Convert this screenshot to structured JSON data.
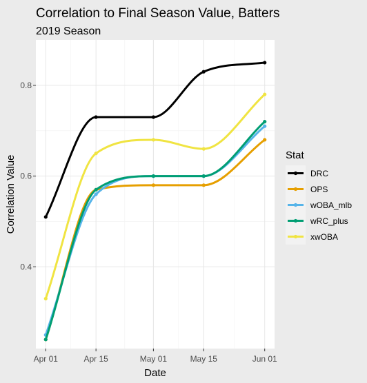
{
  "chart_data": {
    "type": "line",
    "title": "Correlation to Final Season Value, Batters",
    "subtitle": "2019 Season",
    "xlabel": "Date",
    "ylabel": "Correlation Value",
    "legend_title": "Stat",
    "legend_position": "right",
    "x": [
      "2019-04-01",
      "2019-04-15",
      "2019-05-01",
      "2019-05-15",
      "2019-06-01"
    ],
    "xticks": [
      "Apr 01",
      "Apr 15",
      "May 01",
      "May 15",
      "Jun 01"
    ],
    "yticks": [
      0.4,
      0.6,
      0.8
    ],
    "ylim": [
      0.22,
      0.9
    ],
    "grid": true,
    "series": [
      {
        "name": "DRC",
        "color": "#000000",
        "values": [
          0.51,
          0.73,
          0.73,
          0.83,
          0.85
        ]
      },
      {
        "name": "OPS",
        "color": "#e69f00",
        "values": [
          0.24,
          0.57,
          0.58,
          0.58,
          0.68
        ]
      },
      {
        "name": "wOBA_mlb",
        "color": "#56b4e9",
        "values": [
          0.25,
          0.56,
          0.6,
          0.6,
          0.71
        ]
      },
      {
        "name": "wRC_plus",
        "color": "#009e73",
        "values": [
          0.24,
          0.57,
          0.6,
          0.6,
          0.72
        ]
      },
      {
        "name": "xwOBA",
        "color": "#f0e442",
        "values": [
          0.33,
          0.65,
          0.68,
          0.66,
          0.78
        ]
      }
    ]
  }
}
